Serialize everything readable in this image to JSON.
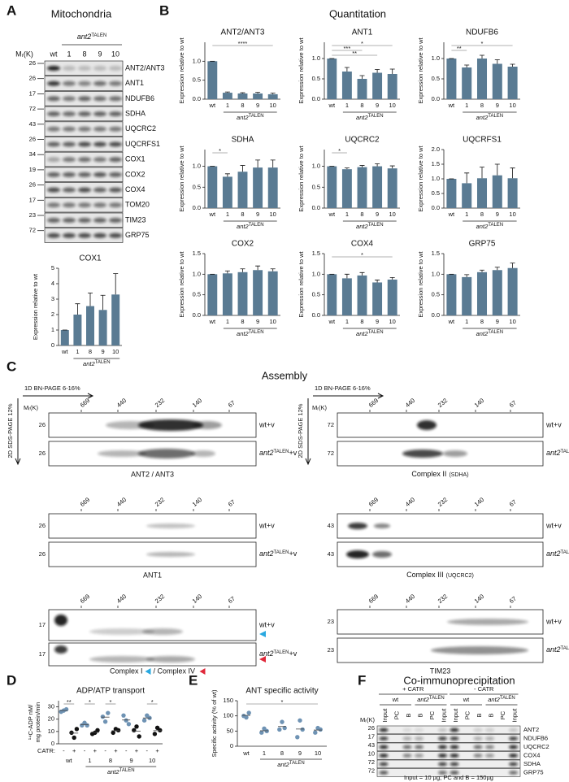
{
  "figure": {
    "labels": [
      "A",
      "B",
      "C",
      "D",
      "E",
      "F"
    ],
    "headings": {
      "mitochondria": "Mitochondria",
      "quantitation": "Quantitation",
      "assembly": "Assembly",
      "coip": "Co-immunoprecipitation"
    }
  },
  "blot_a": {
    "mr": "Mᵣ(K)",
    "group": {
      "base": "ant2",
      "sup": "TALEN"
    },
    "lanes": [
      "wt",
      "1",
      "8",
      "9",
      "10"
    ],
    "rows": [
      {
        "name": "ANT2/ANT3",
        "mr": "26"
      },
      {
        "name": "ANT1",
        "mr": "26"
      },
      {
        "name": "NDUFB6",
        "mr": "17"
      },
      {
        "name": "SDHA",
        "mr": "72"
      },
      {
        "name": "UQCRC2",
        "mr": "43"
      },
      {
        "name": "UQCRFS1",
        "mr": "26"
      },
      {
        "name": "COX1",
        "mr": "34"
      },
      {
        "name": "COX2",
        "mr": "19"
      },
      {
        "name": "COX4",
        "mr": "26"
      },
      {
        "name": "TOM20",
        "mr": "17"
      },
      {
        "name": "TIM23",
        "mr": "23"
      },
      {
        "name": "GRP75",
        "mr": "72"
      }
    ]
  },
  "assembly": {
    "x_axis": "1D BN-PAGE 6-16%",
    "y_axis": "2D SDS-PAGE 12%",
    "mr": "Mᵣ(K)",
    "markers": [
      "669",
      "440",
      "232",
      "140",
      "67"
    ],
    "wt_label": "wt+v",
    "mut_label": {
      "base": "ant2",
      "sup": "TALEN",
      "tail": "+v"
    },
    "panels": [
      {
        "caption": [
          "ANT2 / ANT3"
        ],
        "mr": [
          "26",
          "26"
        ]
      },
      {
        "caption": [
          "ANT1"
        ],
        "mr": [
          "26",
          "26"
        ]
      },
      {
        "caption": [
          "Complex I",
          "/ Complex IV"
        ],
        "mr": [
          "17",
          "17"
        ]
      },
      {
        "caption": [
          "Complex II",
          "(SDHA)"
        ],
        "mr": [
          "72",
          "72"
        ]
      },
      {
        "caption": [
          "Complex III",
          "(UQCRC2)"
        ],
        "mr": [
          "43",
          "43"
        ]
      },
      {
        "caption": [
          "TIM23"
        ],
        "mr": [
          "23",
          "23"
        ]
      }
    ]
  },
  "coip": {
    "plus": "+ CATR",
    "minus": "- CATR",
    "groups": [
      "wt",
      {
        "base": "ant2",
        "sup": "TALEN"
      }
    ],
    "lanes": [
      "Input",
      "PC",
      "B",
      "B",
      "PC",
      "Input"
    ],
    "mr": "Mᵣ(K)",
    "rows": [
      {
        "name": "ANT2",
        "mr": "26"
      },
      {
        "name": "NDUFB6",
        "mr": "17"
      },
      {
        "name": "UQCRC2",
        "mr": "43"
      },
      {
        "name": "COX4",
        "mr": "10"
      },
      {
        "name": "SDHA",
        "mr": "72"
      },
      {
        "name": "GRP75",
        "mr": "72"
      }
    ],
    "footnote": "Input = 10 µg; PC and B = 150µg"
  },
  "chart_data": [
    {
      "type": "bar",
      "title": "COX1",
      "categories": [
        "wt",
        "1",
        "8",
        "9",
        "10"
      ],
      "values": [
        1,
        2.0,
        2.55,
        2.3,
        3.3
      ],
      "errors": [
        0,
        0.7,
        0.85,
        0.95,
        1.35
      ],
      "ylim": [
        0,
        5
      ],
      "yticks": [
        0,
        1,
        2,
        3,
        4,
        5
      ],
      "ylabel": "Expression relative to wt",
      "xlabel": {
        "base": "ant2",
        "sup": "TALEN"
      },
      "color": "#5a7b93",
      "annotations": []
    },
    {
      "type": "bar",
      "title": "ANT2/ANT3",
      "categories": [
        "wt",
        "1",
        "8",
        "9",
        "10"
      ],
      "values": [
        1,
        0.17,
        0.15,
        0.15,
        0.13
      ],
      "errors": [
        0,
        0.02,
        0.02,
        0.03,
        0.03
      ],
      "ylim": [
        0,
        1.5
      ],
      "yticks": [
        {
          "value": 0,
          "label": "0.0"
        },
        0.5,
        {
          "value": 1,
          "label": "1.0"
        }
      ],
      "ylabel": "Expression relative to wt",
      "xlabel": {
        "base": "ant2",
        "sup": "TALEN"
      },
      "color": "#5a7b93",
      "annotations": [
        {
          "text": "****",
          "from": 0,
          "to": 4
        }
      ]
    },
    {
      "type": "bar",
      "title": "ANT1",
      "categories": [
        "wt",
        "1",
        "8",
        "9",
        "10"
      ],
      "values": [
        1,
        0.68,
        0.5,
        0.65,
        0.62
      ],
      "errors": [
        0,
        0.1,
        0.08,
        0.08,
        0.12
      ],
      "ylim": [
        0,
        1.4
      ],
      "yticks": [
        {
          "value": 0,
          "label": "0.0"
        },
        0.5,
        {
          "value": 1,
          "label": "1.0"
        }
      ],
      "ylabel": "Expression relative to wt",
      "xlabel": {
        "base": "ant2",
        "sup": "TALEN"
      },
      "color": "#5a7b93",
      "annotations": [
        {
          "text": "*",
          "from": 0,
          "to": 4
        },
        {
          "text": "***",
          "from": 0,
          "to": 2
        },
        {
          "text": "**",
          "from": 0,
          "to": 3
        }
      ]
    },
    {
      "type": "bar",
      "title": "NDUFB6",
      "categories": [
        "wt",
        "1",
        "8",
        "9",
        "10"
      ],
      "values": [
        1,
        0.78,
        1.0,
        0.87,
        0.8
      ],
      "errors": [
        0,
        0.06,
        0.08,
        0.1,
        0.06
      ],
      "ylim": [
        0,
        1.4
      ],
      "yticks": [
        {
          "value": 0,
          "label": "0.0"
        },
        0.5,
        {
          "value": 1,
          "label": "1.0"
        }
      ],
      "ylabel": "Expression relative to wt",
      "xlabel": {
        "base": "ant2",
        "sup": "TALEN"
      },
      "color": "#5a7b93",
      "annotations": [
        {
          "text": "*",
          "from": 0,
          "to": 4
        },
        {
          "text": "**",
          "from": 0,
          "to": 1
        }
      ]
    },
    {
      "type": "bar",
      "title": "SDHA",
      "categories": [
        "wt",
        "1",
        "8",
        "9",
        "10"
      ],
      "values": [
        1,
        0.75,
        0.87,
        0.97,
        0.97
      ],
      "errors": [
        0,
        0.07,
        0.15,
        0.18,
        0.18
      ],
      "ylim": [
        0,
        1.4
      ],
      "yticks": [
        {
          "value": 0,
          "label": "0.0"
        },
        0.5,
        {
          "value": 1,
          "label": "1.0"
        }
      ],
      "ylabel": "Expression relative to wt",
      "xlabel": {
        "base": "ant2",
        "sup": "TALEN"
      },
      "color": "#5a7b93",
      "annotations": [
        {
          "text": "*",
          "from": 0,
          "to": 1
        }
      ]
    },
    {
      "type": "bar",
      "title": "UQCRC2",
      "categories": [
        "wt",
        "1",
        "8",
        "9",
        "10"
      ],
      "values": [
        1,
        0.93,
        0.98,
        1.0,
        0.95
      ],
      "errors": [
        0,
        0.03,
        0.04,
        0.06,
        0.06
      ],
      "ylim": [
        0,
        1.4
      ],
      "yticks": [
        {
          "value": 0,
          "label": "0.0"
        },
        0.5,
        {
          "value": 1,
          "label": "1.0"
        }
      ],
      "ylabel": "Expression relative to wt",
      "xlabel": {
        "base": "ant2",
        "sup": "TALEN"
      },
      "color": "#5a7b93",
      "annotations": [
        {
          "text": "*",
          "from": 0,
          "to": 1
        }
      ]
    },
    {
      "type": "bar",
      "title": "UQCRFS1",
      "categories": [
        "wt",
        "1",
        "8",
        "9",
        "10"
      ],
      "values": [
        1,
        0.85,
        1.02,
        1.12,
        1.02
      ],
      "errors": [
        0,
        0.35,
        0.38,
        0.38,
        0.35
      ],
      "ylim": [
        0,
        2
      ],
      "yticks": [
        {
          "value": 0,
          "label": "0.0"
        },
        0.5,
        {
          "value": 1,
          "label": "1.0"
        },
        1.5,
        {
          "value": 2,
          "label": "2.0"
        }
      ],
      "ylabel": "Expression relative to wt",
      "xlabel": {
        "base": "ant2",
        "sup": "TALEN"
      },
      "color": "#5a7b93",
      "annotations": []
    },
    {
      "type": "bar",
      "title": "COX2",
      "categories": [
        "wt",
        "1",
        "8",
        "9",
        "10"
      ],
      "values": [
        1,
        1.02,
        1.05,
        1.1,
        1.07
      ],
      "errors": [
        0,
        0.06,
        0.08,
        0.1,
        0.06
      ],
      "ylim": [
        0,
        1.5
      ],
      "yticks": [
        {
          "value": 0,
          "label": "0.0"
        },
        0.5,
        {
          "value": 1,
          "label": "1.0"
        },
        1.5
      ],
      "ylabel": "Expression relative to wt",
      "xlabel": {
        "base": "ant2",
        "sup": "TALEN"
      },
      "color": "#5a7b93",
      "annotations": []
    },
    {
      "type": "bar",
      "title": "COX4",
      "categories": [
        "wt",
        "1",
        "8",
        "9",
        "10"
      ],
      "values": [
        1,
        0.9,
        0.97,
        0.8,
        0.87
      ],
      "errors": [
        0,
        0.1,
        0.07,
        0.06,
        0.05
      ],
      "ylim": [
        0,
        1.5
      ],
      "yticks": [
        {
          "value": 0,
          "label": "0.0"
        },
        0.5,
        {
          "value": 1,
          "label": "1.0"
        },
        1.5
      ],
      "ylabel": "Expression relative to wt",
      "xlabel": {
        "base": "ant2",
        "sup": "TALEN"
      },
      "color": "#5a7b93",
      "annotations": [
        {
          "text": "*",
          "from": 0,
          "to": 4
        }
      ]
    },
    {
      "type": "bar",
      "title": "GRP75",
      "categories": [
        "wt",
        "1",
        "8",
        "9",
        "10"
      ],
      "values": [
        1,
        0.93,
        1.05,
        1.1,
        1.15
      ],
      "errors": [
        0,
        0.06,
        0.05,
        0.07,
        0.12
      ],
      "ylim": [
        0,
        1.5
      ],
      "yticks": [
        {
          "value": 0,
          "label": "0.0"
        },
        0.5,
        {
          "value": 1,
          "label": "1.0"
        },
        1.5
      ],
      "ylabel": "Expression relative to wt",
      "xlabel": {
        "base": "ant2",
        "sup": "TALEN"
      },
      "color": "#5a7b93",
      "annotations": []
    },
    {
      "type": "dots",
      "title": "ADP/ATP transport",
      "categories": [
        "wt",
        "1",
        "8",
        "9",
        "10"
      ],
      "series_label": "CATR:",
      "series": [
        {
          "name": "-",
          "color": "#6f93b4",
          "values": [
            [
              26,
              27,
              28
            ],
            [
              15,
              17,
              15
            ],
            [
              22,
              18,
              25
            ],
            [
              23,
              19,
              16
            ],
            [
              19,
              23,
              21
            ]
          ]
        },
        {
          "name": "+",
          "color": "#111111",
          "values": [
            [
              9,
              5,
              12
            ],
            [
              8,
              9,
              11
            ],
            [
              9,
              12,
              11
            ],
            [
              11,
              14,
              6
            ],
            [
              8,
              13,
              11
            ]
          ]
        }
      ],
      "ylim": [
        0,
        35
      ],
      "yticks": [
        0,
        10,
        20,
        30
      ],
      "ylabel": [
        "¹⁴C-ADP nM/",
        "mg protein/min"
      ],
      "xlabel": {
        "base": "ant2",
        "sup": "TALEN"
      },
      "annotations": [
        {
          "text": "**",
          "from": 0,
          "to": 1
        },
        {
          "text": "*",
          "from": 2,
          "to": 3
        },
        {
          "text": "*",
          "from": 4,
          "to": 5
        },
        {
          "text": "*",
          "from": 8,
          "to": 9
        }
      ]
    },
    {
      "type": "dots",
      "title": "ANT specific activity",
      "categories": [
        "wt",
        "1",
        "8",
        "9",
        "10"
      ],
      "series": [
        {
          "color": "#6f93b4",
          "values": [
            [
              100,
              95,
              110
            ],
            [
              45,
              58,
              50
            ],
            [
              55,
              80,
              60
            ],
            [
              30,
              85,
              55
            ],
            [
              45,
              60,
              55
            ]
          ]
        }
      ],
      "ylim": [
        0,
        150
      ],
      "yticks": [
        0,
        50,
        100,
        150
      ],
      "ylabel": "Specific activity (% of wt)",
      "xlabel": {
        "base": "ant2",
        "sup": "TALEN"
      },
      "annotations": [
        {
          "text": "*",
          "from": 0,
          "to": 4
        }
      ]
    }
  ]
}
